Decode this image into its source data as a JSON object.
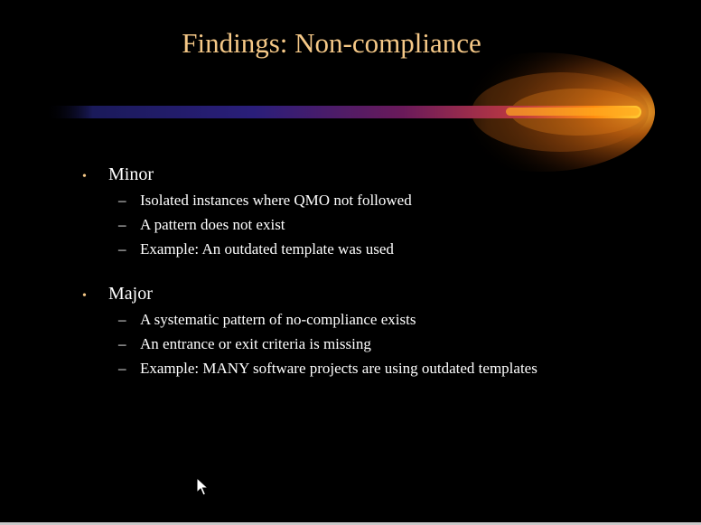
{
  "slide": {
    "title": "Findings: Non-compliance",
    "sections": [
      {
        "heading": "Minor",
        "items": [
          "Isolated instances where QMO not followed",
          "A pattern does not exist",
          "Example: An outdated template was used"
        ]
      },
      {
        "heading": "Major",
        "items": [
          "A systematic pattern of no-compliance exists",
          "An entrance or exit criteria is missing",
          "Example: MANY software projects are using outdated templates"
        ]
      }
    ],
    "bullet_symbol": "•",
    "dash_symbol": "–"
  },
  "colors": {
    "background": "#000000",
    "title": "#f5c887",
    "text": "#ffffff",
    "streak_glow": "#ff9900"
  },
  "icons": {
    "cursor": "mouse-pointer-icon"
  }
}
